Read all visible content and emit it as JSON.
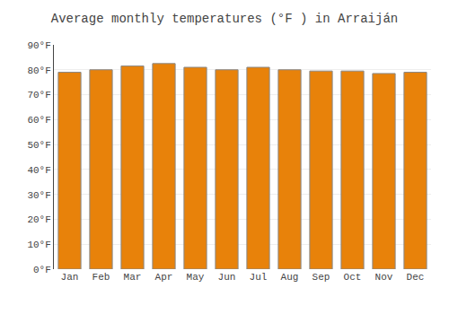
{
  "chart_data": {
    "type": "bar",
    "title": "Average monthly temperatures (°F ) in Arraiján",
    "categories": [
      "Jan",
      "Feb",
      "Mar",
      "Apr",
      "May",
      "Jun",
      "Jul",
      "Aug",
      "Sep",
      "Oct",
      "Nov",
      "Dec"
    ],
    "values": [
      79.0,
      80.0,
      81.5,
      82.5,
      81.0,
      80.0,
      81.0,
      80.0,
      79.5,
      79.5,
      78.5,
      79.0
    ],
    "color": "#E8820A",
    "ylim": [
      0,
      90
    ],
    "yticks": [
      {
        "value": 0,
        "label": "0°F"
      },
      {
        "value": 10,
        "label": "10°F"
      },
      {
        "value": 20,
        "label": "20°F"
      },
      {
        "value": 30,
        "label": "30°F"
      },
      {
        "value": 40,
        "label": "40°F"
      },
      {
        "value": 50,
        "label": "50°F"
      },
      {
        "value": 60,
        "label": "60°F"
      },
      {
        "value": 70,
        "label": "70°F"
      },
      {
        "value": 80,
        "label": "80°F"
      },
      {
        "value": 90,
        "label": "90°F"
      }
    ],
    "grid": true
  }
}
